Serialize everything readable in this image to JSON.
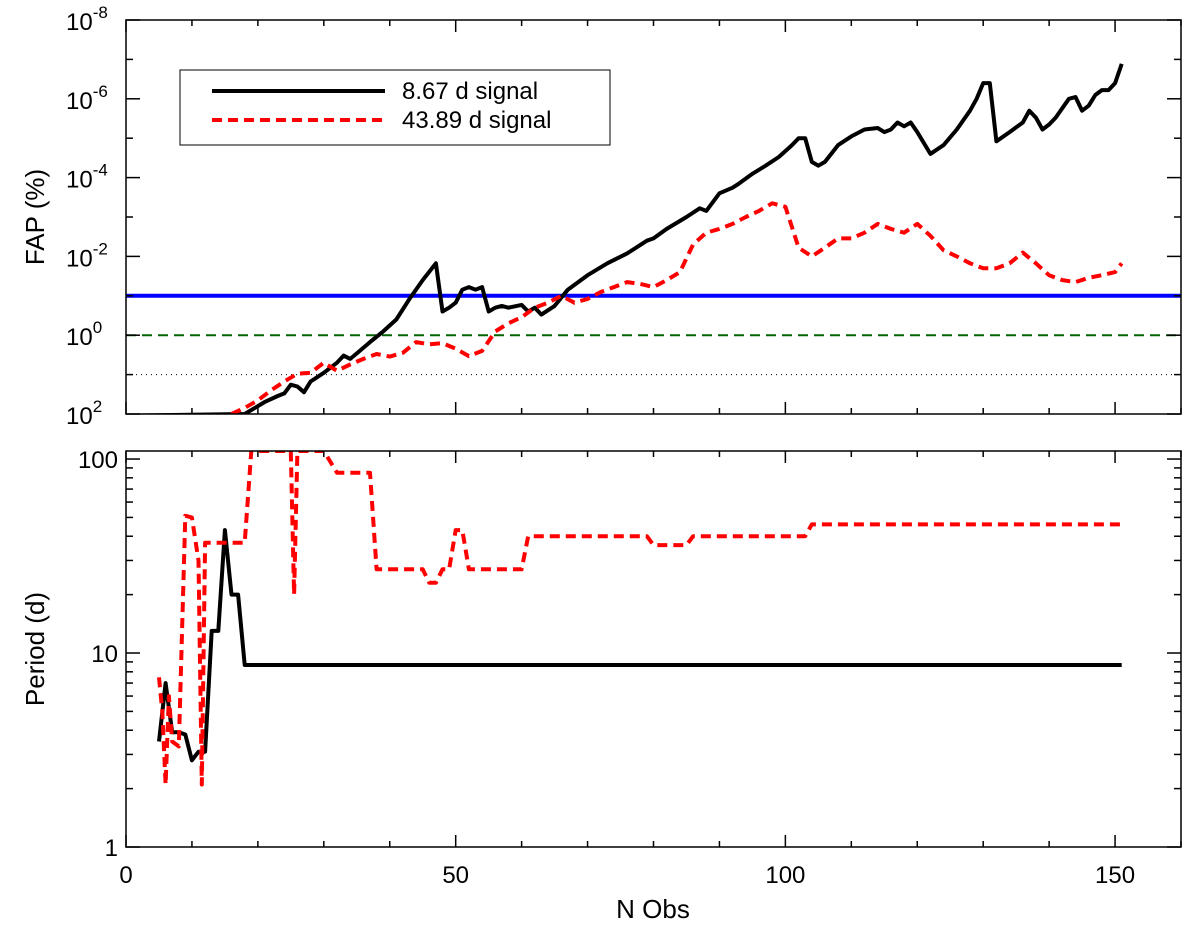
{
  "chart_data": [
    {
      "type": "line",
      "ylabel": "FAP (%)",
      "yscale": "log",
      "yaxis_inverted": true,
      "ylim": [
        100,
        1e-08
      ],
      "xlim": [
        0,
        160
      ],
      "x_ticks": [
        0,
        50,
        100,
        150
      ],
      "y_ticks": [
        {
          "exp": "2",
          "value": 100
        },
        {
          "exp": "0",
          "value": 1
        },
        {
          "exp": "-2",
          "value": 0.01
        },
        {
          "exp": "-4",
          "value": 0.0001
        },
        {
          "exp": "-6",
          "value": 1e-06
        },
        {
          "exp": "-8",
          "value": 1e-08
        }
      ],
      "y_tick_base": "10",
      "legend": {
        "placement": "top-left"
      },
      "series": [
        {
          "name": "8.67 d signal",
          "color": "#000000",
          "style": "solid",
          "x": [
            0,
            18,
            21,
            23,
            24,
            25,
            26,
            27,
            28,
            30,
            32,
            33,
            34,
            35,
            37,
            39,
            41,
            43,
            45,
            47,
            48,
            49,
            50,
            51,
            52,
            53,
            54,
            55,
            56,
            57,
            58,
            60,
            61,
            62,
            63,
            65,
            67,
            70,
            73,
            76,
            79,
            80,
            82,
            85,
            87,
            88,
            90,
            92,
            93,
            95,
            97,
            99,
            101,
            102,
            103,
            104,
            105,
            106,
            108,
            110,
            112,
            114,
            115,
            116,
            117,
            118,
            119,
            120,
            122,
            124,
            126,
            128,
            129,
            130,
            131,
            132,
            134,
            136,
            137,
            138,
            139,
            140,
            141,
            143,
            144,
            145,
            146,
            147,
            148,
            149,
            150,
            151
          ],
          "y": [
            110,
            100,
            50,
            35,
            30,
            18,
            20,
            28,
            15,
            9,
            5,
            3.3,
            4,
            2.9,
            1.5,
            0.8,
            0.4,
            0.12,
            0.04,
            0.015,
            0.25,
            0.2,
            0.15,
            0.07,
            0.06,
            0.07,
            0.06,
            0.25,
            0.2,
            0.18,
            0.2,
            0.17,
            0.25,
            0.2,
            0.3,
            0.18,
            0.07,
            0.03,
            0.015,
            0.0084,
            0.004,
            0.0035,
            0.002,
            0.001,
            0.0006,
            0.0007,
            0.00025,
            0.00018,
            0.00014,
            8e-05,
            5e-05,
            3e-05,
            1.5e-05,
            1e-05,
            1e-05,
            4e-05,
            5e-05,
            4e-05,
            1.5e-05,
            9e-06,
            6e-06,
            5.5e-06,
            7e-06,
            6e-06,
            4e-06,
            5e-06,
            4e-06,
            7e-06,
            2.5e-05,
            1.5e-05,
            6e-06,
            2e-06,
            1e-06,
            4e-07,
            4e-07,
            1.2e-05,
            7e-06,
            4e-06,
            2e-06,
            3e-06,
            6e-06,
            4.5e-06,
            3e-06,
            1e-06,
            9e-07,
            2e-06,
            1.5e-06,
            8e-07,
            6e-07,
            6e-07,
            4e-07,
            1.3e-07
          ]
        },
        {
          "name": "43.89 d signal",
          "color": "#ff0000",
          "style": "dashed",
          "x": [
            16,
            18,
            20,
            22,
            24,
            26,
            28,
            30,
            32,
            34,
            36,
            38,
            40,
            42,
            44,
            46,
            48,
            50,
            52,
            54,
            56,
            58,
            60,
            62,
            64,
            66,
            68,
            70,
            72,
            74,
            76,
            78,
            80,
            82,
            84,
            86,
            88,
            90,
            92,
            94,
            96,
            98,
            100,
            102,
            104,
            106,
            108,
            110,
            112,
            114,
            116,
            118,
            120,
            122,
            124,
            126,
            128,
            130,
            132,
            134,
            136,
            138,
            140,
            142,
            144,
            146,
            148,
            150,
            151
          ],
          "y": [
            100,
            70,
            45,
            25,
            15,
            9.5,
            9,
            5,
            8,
            5.5,
            4,
            3,
            3.5,
            2.8,
            1.5,
            1.7,
            1.6,
            2.2,
            3.4,
            2.5,
            0.8,
            0.5,
            0.35,
            0.2,
            0.15,
            0.1,
            0.15,
            0.12,
            0.08,
            0.06,
            0.045,
            0.05,
            0.06,
            0.04,
            0.025,
            0.005,
            0.0025,
            0.002,
            0.0015,
            0.001,
            0.0007,
            0.00045,
            0.00055,
            0.006,
            0.01,
            0.006,
            0.0035,
            0.0035,
            0.0025,
            0.0015,
            0.002,
            0.0025,
            0.0015,
            0.003,
            0.007,
            0.01,
            0.015,
            0.02,
            0.02,
            0.015,
            0.008,
            0.015,
            0.03,
            0.04,
            0.045,
            0.035,
            0.03,
            0.025,
            0.015
          ]
        }
      ],
      "reference_lines": [
        {
          "value": 0.1,
          "color": "#0000ff",
          "style": "solid"
        },
        {
          "value": 1,
          "color": "#006400",
          "style": "dashed"
        },
        {
          "value": 10,
          "color": "#000000",
          "style": "dotted"
        }
      ]
    },
    {
      "type": "line",
      "xlabel": "N Obs",
      "ylabel": "Period (d)",
      "yscale": "log",
      "ylim": [
        1,
        110
      ],
      "xlim": [
        0,
        160
      ],
      "x_ticks": [
        0,
        50,
        100,
        150
      ],
      "y_ticks": [
        "1",
        "10",
        "100"
      ],
      "series": [
        {
          "name": "8.67 d signal",
          "color": "#000000",
          "style": "solid",
          "x": [
            5,
            6,
            7,
            8,
            9,
            10,
            11,
            12,
            13,
            14,
            15,
            16,
            17,
            18,
            55,
            100,
            151
          ],
          "y": [
            3.5,
            7,
            3.9,
            3.9,
            3.8,
            2.8,
            3.1,
            3.1,
            13,
            13,
            43,
            20,
            20,
            8.67,
            8.67,
            8.67,
            8.67
          ]
        },
        {
          "name": "43.89 d signal",
          "color": "#ff0000",
          "style": "dashed",
          "x": [
            5,
            5.5,
            6,
            6.5,
            7,
            8,
            9,
            10,
            11,
            11.5,
            12,
            13,
            14,
            15,
            16,
            17,
            18,
            19,
            20,
            25,
            25.5,
            26,
            27,
            30,
            32,
            37,
            38,
            40,
            42,
            45,
            46,
            47,
            48,
            49,
            50,
            51,
            52,
            55,
            58,
            60,
            61,
            62,
            65,
            70,
            75,
            79,
            80,
            81,
            85,
            86,
            90,
            95,
            100,
            103,
            104,
            105,
            110,
            120,
            130,
            140,
            151
          ],
          "y": [
            7.5,
            5,
            2.1,
            6,
            3.5,
            3.3,
            51,
            50,
            30,
            2.1,
            37,
            37,
            37,
            37,
            37,
            37,
            37,
            110,
            110,
            110,
            20,
            110,
            110,
            110,
            85,
            85,
            27,
            27,
            27,
            27,
            23,
            23,
            27,
            27,
            43,
            43,
            27,
            27,
            27,
            27,
            40,
            40,
            40,
            40,
            40,
            40,
            36,
            36,
            36,
            40,
            40,
            40,
            40,
            40,
            46,
            46,
            46,
            46,
            46,
            46,
            46
          ]
        }
      ]
    }
  ],
  "legend_entries": [
    "8.67 d signal",
    "43.89 d signal"
  ]
}
